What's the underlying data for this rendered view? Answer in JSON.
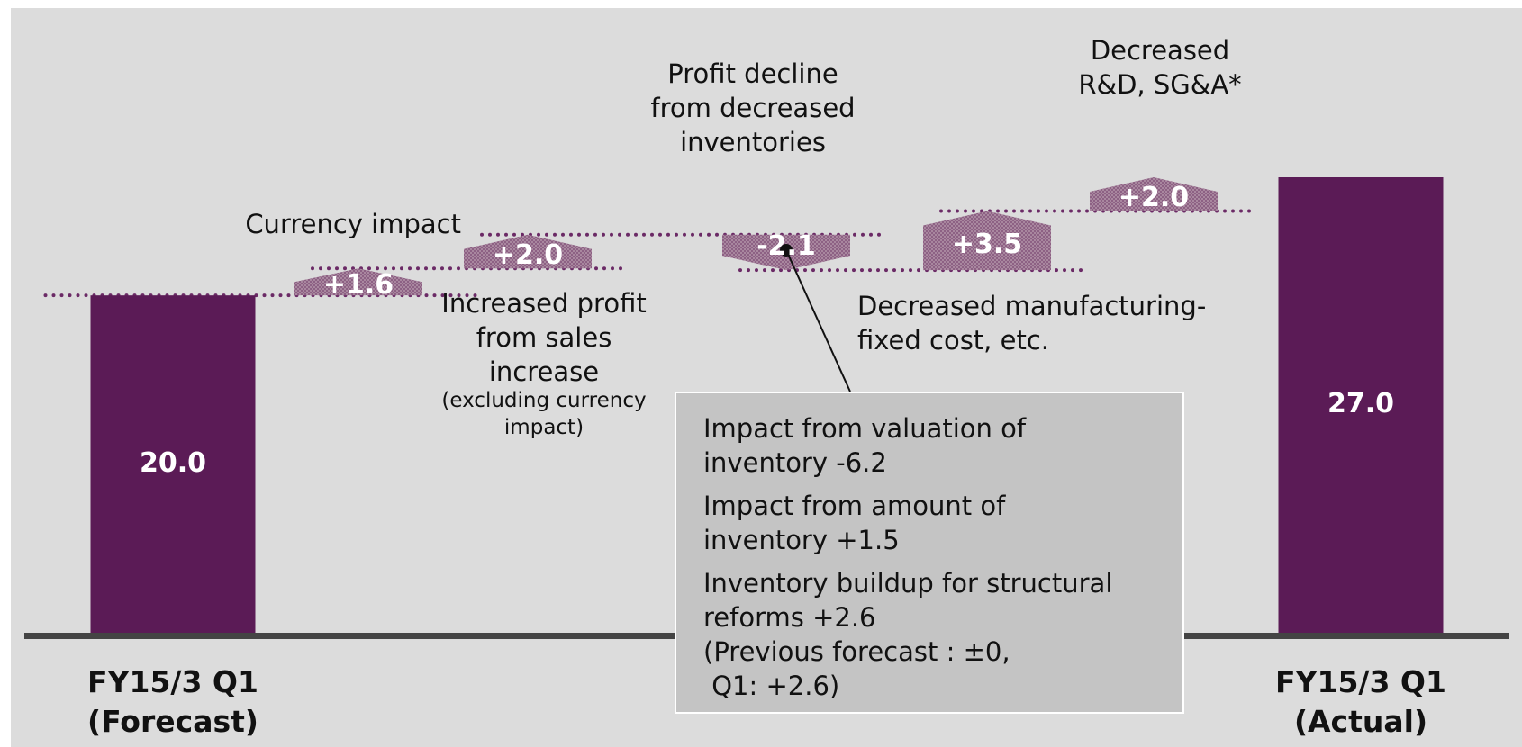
{
  "chart_data": {
    "type": "waterfall",
    "categories": [
      "FY15/3 Q1\n(Forecast)",
      null,
      null,
      null,
      null,
      null,
      "FY15/3 Q1\n(Actual)"
    ],
    "values": [
      20.0,
      1.6,
      2.0,
      -2.1,
      3.5,
      2.0,
      27.0
    ],
    "value_labels": [
      "20.0",
      "+1.6",
      "+2.0",
      "-2.1",
      "+3.5",
      "+2.0",
      "27.0"
    ],
    "measure": [
      "absolute",
      "relative",
      "relative",
      "relative",
      "relative",
      "relative",
      "total"
    ],
    "color": "#5b1b56",
    "delta_color": "#9c6f95",
    "connector_color": "#6b2a66",
    "annotations": [
      "Currency impact",
      "Increased profit\nfrom sales\nincrease",
      "(excluding currency\nimpact)",
      "Profit decline\nfrom decreased\ninventories",
      "Decreased manufacturing-\nfixed cost, etc.",
      "Decreased\nR&D, SG&A*"
    ],
    "note": {
      "paragraphs": [
        "Impact from valuation of\ninventory -6.2",
        "Impact from amount of\ninventory +1.5",
        "Inventory buildup for structural\nreforms +2.6\n(Previous forecast : ±0,\n Q1: +2.6)"
      ]
    }
  }
}
